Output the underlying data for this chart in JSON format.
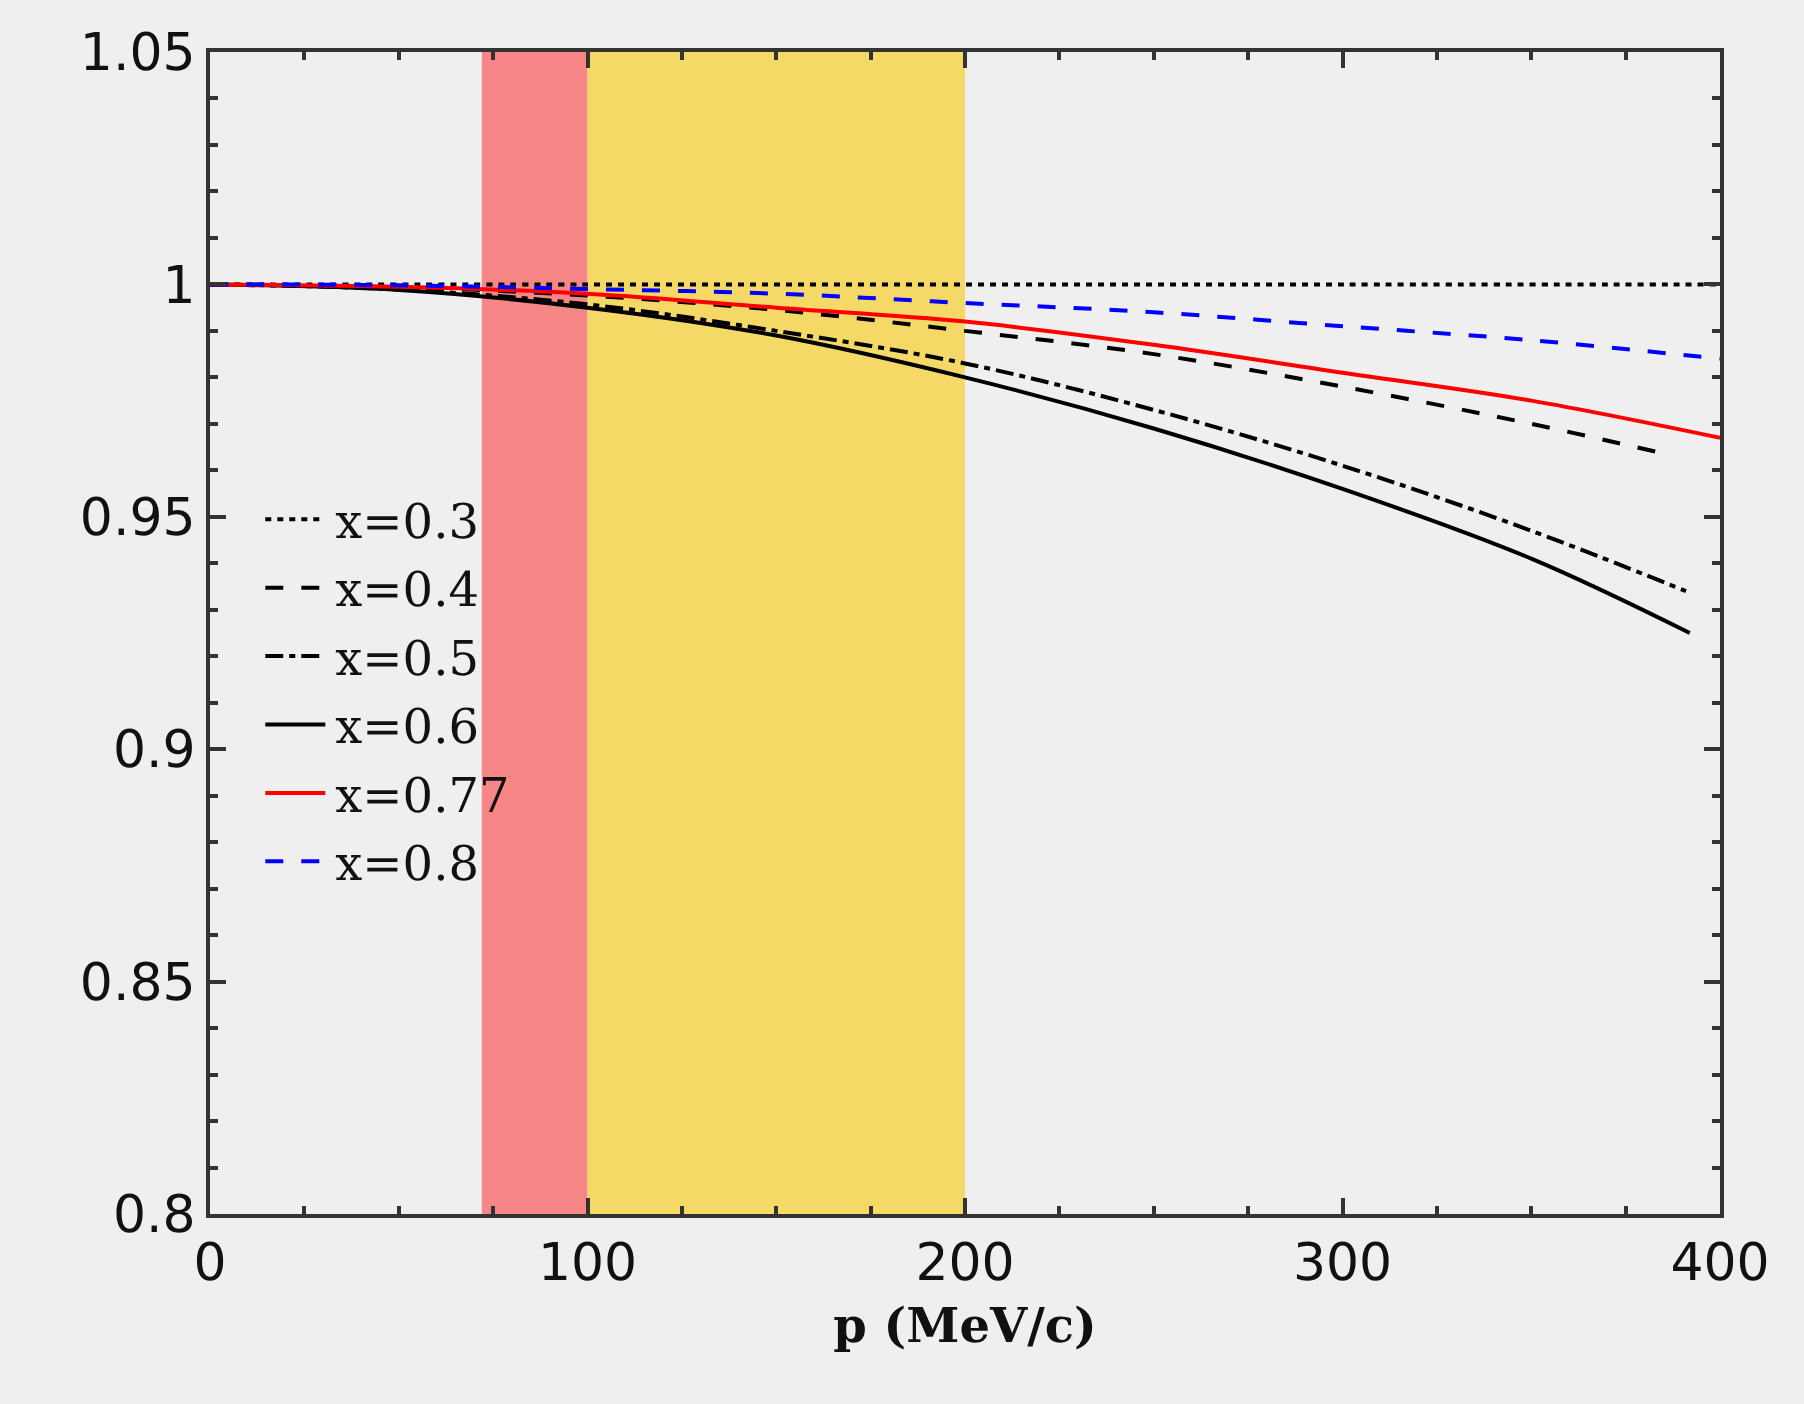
{
  "chart_data": {
    "type": "line",
    "xlabel": "p (MeV/c)",
    "xlim": [
      0,
      400
    ],
    "xticks": [
      0,
      100,
      200,
      300,
      400
    ],
    "ylim": [
      0.8,
      1.05
    ],
    "yticks": [
      0.8,
      0.85,
      0.9,
      0.95,
      1,
      1.05
    ],
    "grid": false,
    "legend": "left",
    "series": [
      {
        "name": "x=0.3",
        "color": "#000000",
        "line_style": "dotted",
        "x": [
          0,
          100,
          200,
          300,
          400
        ],
        "values": [
          1,
          1,
          1,
          1,
          1
        ]
      },
      {
        "name": "x=0.4",
        "color": "#000000",
        "line_style": "dashed",
        "x": [
          0,
          50,
          100,
          150,
          200,
          250,
          300,
          350,
          383
        ],
        "values": [
          1,
          0.9994,
          0.9976,
          0.9945,
          0.99,
          0.985,
          0.978,
          0.97,
          0.964
        ]
      },
      {
        "name": "x=0.5",
        "color": "#000000",
        "line_style": "dashdot",
        "x": [
          0,
          50,
          100,
          150,
          200,
          250,
          300,
          350,
          391
        ],
        "values": [
          1,
          0.9989,
          0.9957,
          0.99,
          0.983,
          0.973,
          0.961,
          0.947,
          0.934
        ]
      },
      {
        "name": "x=0.6",
        "color": "#000000",
        "line_style": "solid",
        "x": [
          0,
          50,
          100,
          150,
          200,
          250,
          300,
          350,
          392
        ],
        "values": [
          1,
          0.9988,
          0.995,
          0.989,
          0.98,
          0.969,
          0.956,
          0.941,
          0.925
        ]
      },
      {
        "name": "x=0.77",
        "color": "#ff0000",
        "line_style": "solid",
        "x": [
          0,
          50,
          100,
          150,
          200,
          250,
          300,
          350,
          400
        ],
        "values": [
          1,
          0.9995,
          0.998,
          0.995,
          0.992,
          0.987,
          0.981,
          0.975,
          0.967
        ]
      },
      {
        "name": "x=0.8",
        "color": "#0000ff",
        "line_style": "dashed",
        "x": [
          0,
          50,
          100,
          150,
          200,
          250,
          300,
          350,
          400
        ],
        "values": [
          1,
          0.9998,
          0.999,
          0.998,
          0.996,
          0.994,
          0.991,
          0.988,
          0.984
        ]
      }
    ],
    "bands": [
      {
        "axis": "x",
        "from": 72,
        "to": 100,
        "color": "#f78787"
      },
      {
        "axis": "x",
        "from": 100,
        "to": 200,
        "color": "#f5d966"
      }
    ]
  }
}
